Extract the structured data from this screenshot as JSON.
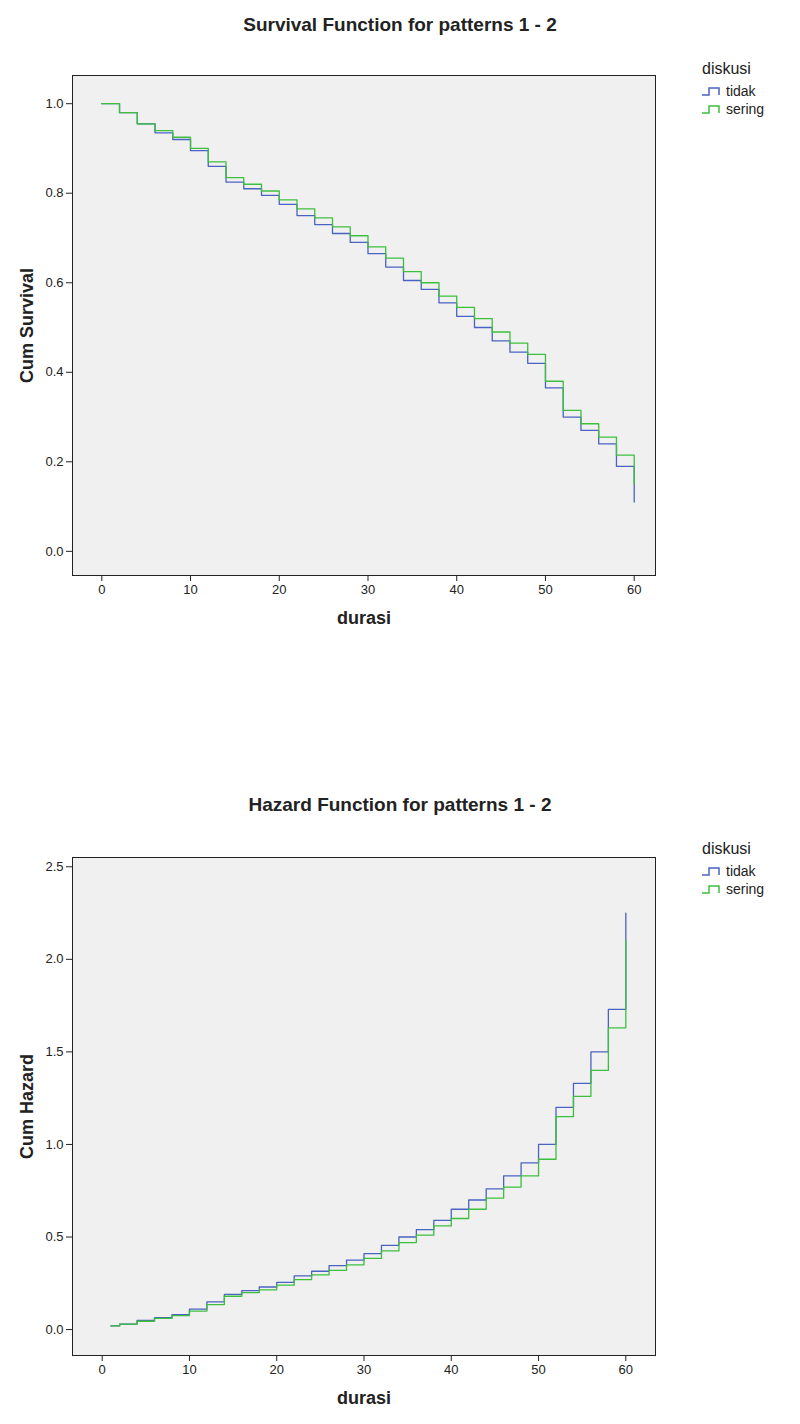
{
  "chart_data": [
    {
      "type": "line",
      "title": "Survival Function for patterns 1 - 2",
      "x_label": "durasi",
      "y_label": "Cum Survival",
      "legend": "right",
      "legend_title": "diskusi",
      "line_style": "step",
      "x": [
        0,
        2,
        4,
        6,
        8,
        10,
        12,
        14,
        16,
        18,
        20,
        22,
        24,
        26,
        28,
        30,
        32,
        34,
        36,
        38,
        40,
        42,
        44,
        46,
        48,
        50,
        52,
        54,
        56,
        58,
        60
      ],
      "series": [
        {
          "name": "tidak",
          "color": "#4a62c2",
          "values": [
            1.0,
            0.98,
            0.955,
            0.935,
            0.92,
            0.895,
            0.86,
            0.825,
            0.81,
            0.795,
            0.775,
            0.75,
            0.73,
            0.71,
            0.69,
            0.665,
            0.635,
            0.605,
            0.585,
            0.555,
            0.525,
            0.5,
            0.47,
            0.445,
            0.42,
            0.365,
            0.3,
            0.27,
            0.24,
            0.19,
            0.11
          ]
        },
        {
          "name": "sering",
          "color": "#3dbf3d",
          "values": [
            1.0,
            0.98,
            0.955,
            0.94,
            0.925,
            0.9,
            0.87,
            0.835,
            0.82,
            0.805,
            0.785,
            0.765,
            0.745,
            0.725,
            0.705,
            0.68,
            0.655,
            0.625,
            0.6,
            0.57,
            0.545,
            0.52,
            0.49,
            0.465,
            0.44,
            0.38,
            0.315,
            0.285,
            0.255,
            0.215,
            0.15
          ]
        }
      ],
      "xlim": [
        -3.3,
        62.4
      ],
      "xticks": [
        0,
        10,
        20,
        30,
        40,
        50,
        60
      ],
      "ylim": [
        -0.054,
        1.063
      ],
      "yticks": [
        {
          "value": 0,
          "label": "0.0"
        },
        {
          "value": 0.2,
          "label": "0.2"
        },
        {
          "value": 0.4,
          "label": "0.4"
        },
        {
          "value": 0.6,
          "label": "0.6"
        },
        {
          "value": 0.8,
          "label": "0.8"
        },
        {
          "value": 1,
          "label": "1.0"
        }
      ]
    },
    {
      "type": "line",
      "title": "Hazard Function for patterns 1 - 2",
      "x_label": "durasi",
      "y_label": "Cum Hazard",
      "legend": "right",
      "legend_title": "diskusi",
      "line_style": "step",
      "x": [
        1,
        2,
        4,
        6,
        8,
        10,
        12,
        14,
        16,
        18,
        20,
        22,
        24,
        26,
        28,
        30,
        32,
        34,
        36,
        38,
        40,
        42,
        44,
        46,
        48,
        50,
        52,
        54,
        56,
        58,
        60
      ],
      "series": [
        {
          "name": "tidak",
          "color": "#4a62c2",
          "values": [
            0.02,
            0.03,
            0.05,
            0.065,
            0.08,
            0.11,
            0.15,
            0.19,
            0.21,
            0.23,
            0.255,
            0.29,
            0.315,
            0.345,
            0.375,
            0.41,
            0.455,
            0.5,
            0.54,
            0.59,
            0.65,
            0.7,
            0.76,
            0.83,
            0.9,
            1.0,
            1.2,
            1.33,
            1.5,
            1.73,
            2.25
          ]
        },
        {
          "name": "sering",
          "color": "#3dbf3d",
          "values": [
            0.02,
            0.03,
            0.045,
            0.06,
            0.075,
            0.1,
            0.135,
            0.18,
            0.2,
            0.215,
            0.24,
            0.27,
            0.295,
            0.32,
            0.35,
            0.385,
            0.425,
            0.47,
            0.51,
            0.56,
            0.6,
            0.65,
            0.71,
            0.77,
            0.83,
            0.92,
            1.15,
            1.26,
            1.4,
            1.63,
            2.1
          ]
        }
      ],
      "xlim": [
        -3.4,
        63.4
      ],
      "xticks": [
        0,
        10,
        20,
        30,
        40,
        50,
        60
      ],
      "ylim": [
        -0.14,
        2.55
      ],
      "yticks": [
        {
          "value": 0,
          "label": "0.0"
        },
        {
          "value": 0.5,
          "label": "0.5"
        },
        {
          "value": 1,
          "label": "1.0"
        },
        {
          "value": 1.5,
          "label": "1.5"
        },
        {
          "value": 2,
          "label": "2.0"
        },
        {
          "value": 2.5,
          "label": "2.5"
        }
      ]
    }
  ]
}
